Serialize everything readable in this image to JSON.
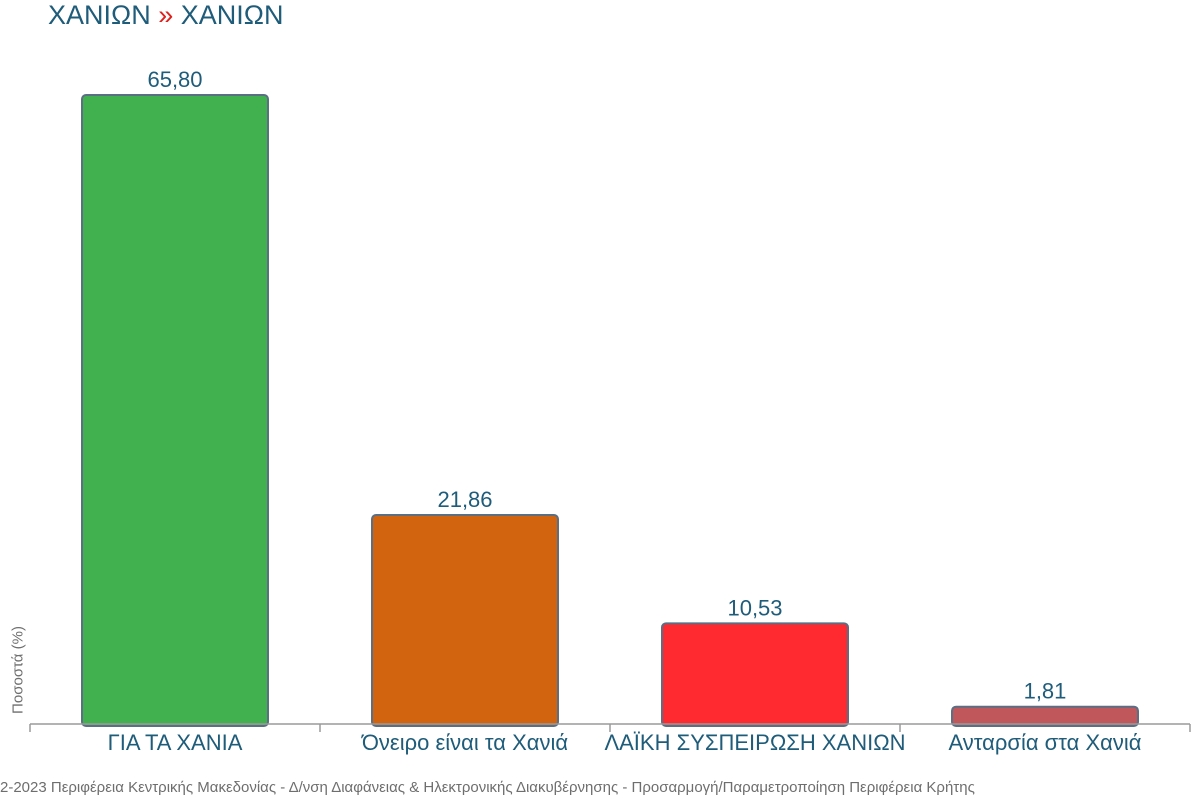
{
  "header": {
    "region": "ΧΑΝΙΩΝ",
    "separator": "»",
    "municipality": "ΧΑΝΙΩΝ"
  },
  "footer": {
    "text": "2-2023 Περιφέρεια Κεντρικής Μακεδονίας - Δ/νση Διαφάνειας & Ηλεκτρονικής Διακυβέρνησης - Προσαρμογή/Παραμετροποίηση Περιφέρεια Κρήτης"
  },
  "chart_data": {
    "type": "bar",
    "ylabel": "Ποσοστά (%)",
    "xlabel": "",
    "categories": [
      "ΓΙΑ ΤΑ ΧΑΝΙΑ",
      "Όνειρο είναι τα Χανιά",
      "ΛΑΪΚΗ ΣΥΣΠΕΙΡΩΣΗ ΧΑΝΙΩΝ",
      "Ανταρσία στα Χανιά"
    ],
    "values": [
      65.8,
      21.86,
      10.53,
      1.81
    ],
    "value_labels": [
      "65,80",
      "21,86",
      "10,53",
      "1,81"
    ],
    "colors": [
      "#41b14f",
      "#d2630f",
      "#ff2a2f",
      "#c0575a"
    ],
    "ylim": [
      0,
      65.8
    ],
    "grid": false,
    "legend": "none"
  }
}
